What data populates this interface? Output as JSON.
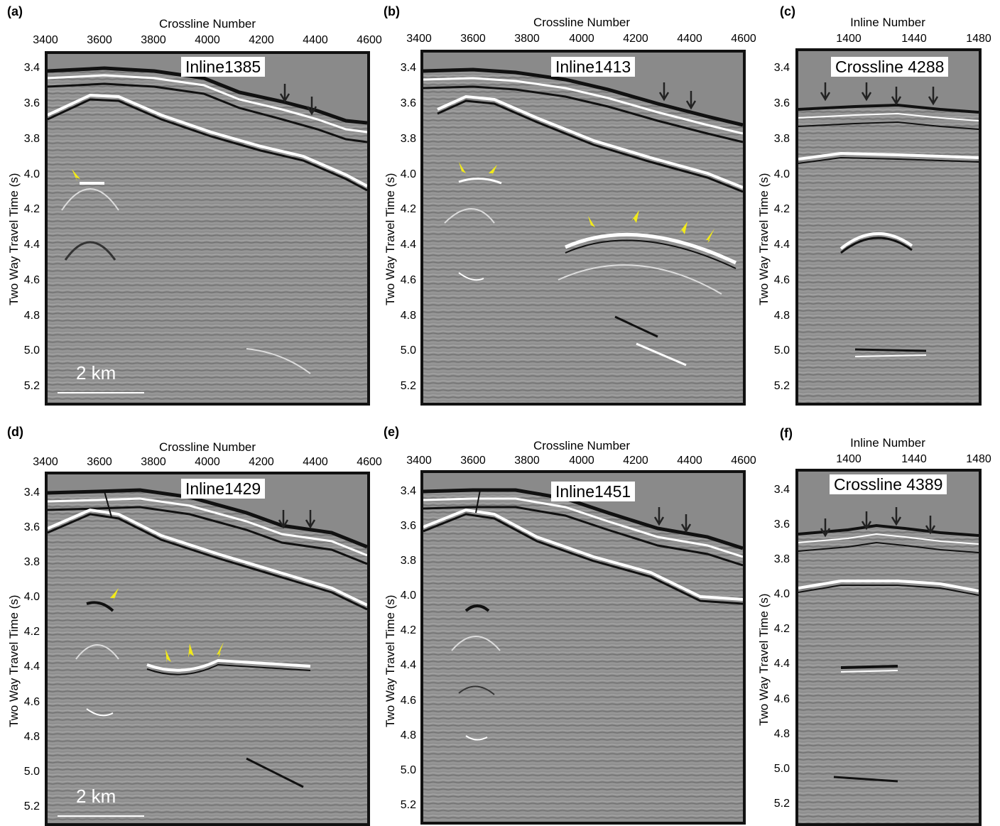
{
  "axes": {
    "crossline_title": "Crossline Number",
    "inline_title": "Inline Number",
    "y_title": "Two Way Travel Time (s)",
    "crossline_ticks": [
      "3400",
      "3600",
      "3800",
      "4000",
      "4200",
      "4400",
      "4600"
    ],
    "inline_ticks": [
      "1400",
      "1440",
      "1480"
    ],
    "y_ticks": [
      "3.4",
      "3.6",
      "3.8",
      "4.0",
      "4.2",
      "4.4",
      "4.6",
      "4.8",
      "5.0",
      "5.2"
    ]
  },
  "panels": [
    {
      "letter": "(a)",
      "label": "Inline1385",
      "scale": "2 km"
    },
    {
      "letter": "(b)",
      "label": "Inline1413",
      "scale": ""
    },
    {
      "letter": "(c)",
      "label": "Crossline 4288",
      "scale": ""
    },
    {
      "letter": "(d)",
      "label": "Inline1429",
      "scale": "2 km"
    },
    {
      "letter": "(e)",
      "label": "Inline1451",
      "scale": ""
    },
    {
      "letter": "(f)",
      "label": "Crossline 4389",
      "scale": ""
    }
  ],
  "colors": {
    "water": "#8a8a8a",
    "frame": "#111111",
    "yellow_arrow": "#f2ea1a",
    "black_arrow": "#222222"
  }
}
